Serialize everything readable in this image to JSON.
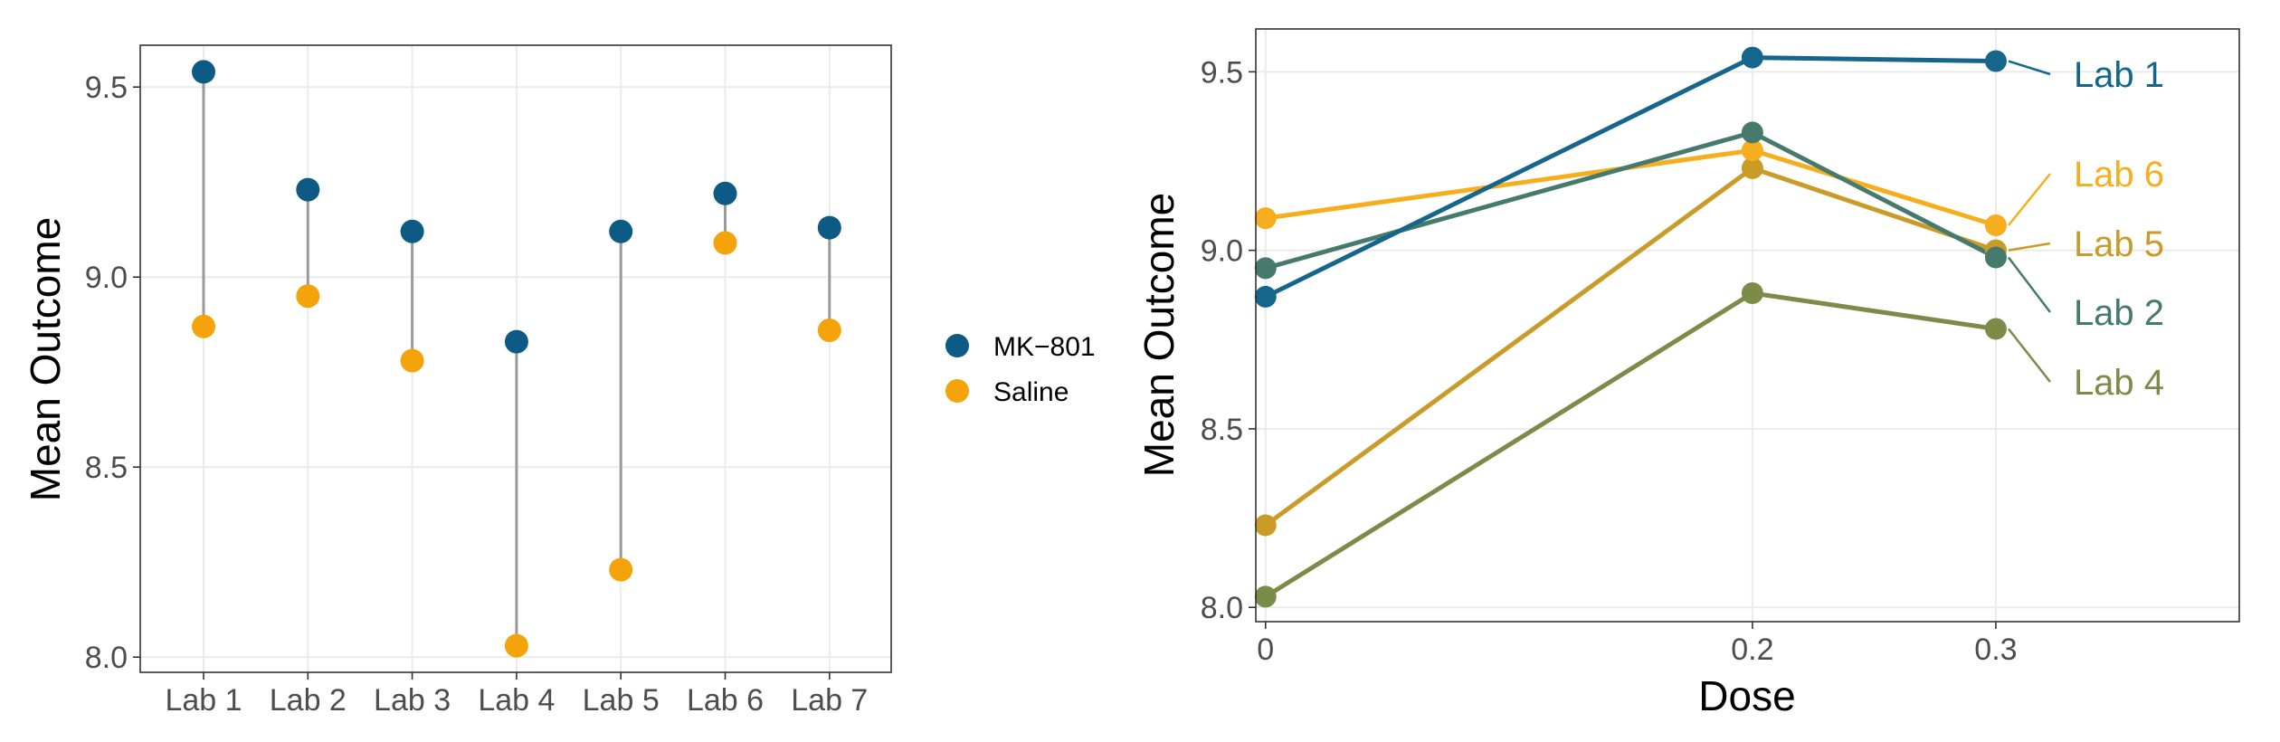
{
  "colors": {
    "mk801": "#0d5a84",
    "saline": "#f5a30a",
    "segment": "#9a9a9a"
  },
  "chart_data": [
    {
      "type": "scatter",
      "subtype": "dumbbell",
      "title": "",
      "xlabel": "",
      "ylabel": "Mean Outcome",
      "categories": [
        "Lab 1",
        "Lab 2",
        "Lab 3",
        "Lab 4",
        "Lab 5",
        "Lab 6",
        "Lab 7"
      ],
      "ylim": [
        7.96,
        9.61
      ],
      "yticks": [
        8.0,
        8.5,
        9.0,
        9.5
      ],
      "ytick_labels": [
        "8.0",
        "8.5",
        "9.0",
        "9.5"
      ],
      "grid": true,
      "legend_position": "right",
      "series": [
        {
          "name": "MK−801",
          "color": "#0d5a84",
          "values": [
            9.54,
            9.23,
            9.12,
            8.83,
            9.12,
            9.22,
            9.13
          ]
        },
        {
          "name": "Saline",
          "color": "#f5a30a",
          "values": [
            8.87,
            8.95,
            8.78,
            8.03,
            8.23,
            9.09,
            8.86
          ]
        }
      ]
    },
    {
      "type": "line",
      "title": "",
      "xlabel": "Dose",
      "ylabel": "Mean Outcome",
      "x": [
        0,
        0.2,
        0.3
      ],
      "xtick_labels": [
        "0",
        "0.2",
        "0.3"
      ],
      "xlim": [
        -0.004,
        0.4
      ],
      "ylim": [
        7.96,
        9.62
      ],
      "yticks": [
        8.0,
        8.5,
        9.0,
        9.5
      ],
      "ytick_labels": [
        "8.0",
        "8.5",
        "9.0",
        "9.5"
      ],
      "grid": true,
      "legend_position": "direct-labels-right",
      "series": [
        {
          "name": "Lab 1",
          "color": "#16658a",
          "values": [
            8.87,
            9.54,
            9.53
          ]
        },
        {
          "name": "Lab 2",
          "color": "#457a6c",
          "values": [
            8.95,
            9.33,
            8.98
          ]
        },
        {
          "name": "Lab 6",
          "color": "#f7ae1e",
          "values": [
            9.09,
            9.28,
            9.07
          ]
        },
        {
          "name": "Lab 5",
          "color": "#c99c28",
          "values": [
            8.23,
            9.23,
            9.0
          ]
        },
        {
          "name": "Lab 4",
          "color": "#7b8b48",
          "values": [
            8.03,
            8.88,
            8.78
          ]
        }
      ]
    }
  ]
}
